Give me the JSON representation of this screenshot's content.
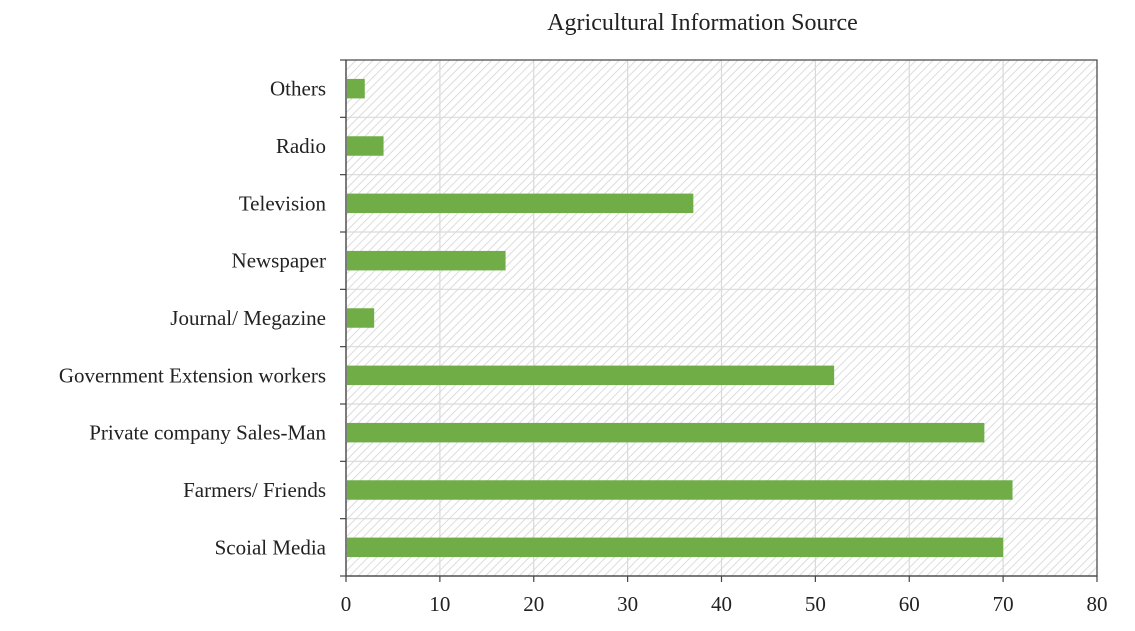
{
  "chart_data": {
    "type": "bar",
    "orientation": "horizontal",
    "title": "Agricultural Information Source",
    "xlabel": "",
    "ylabel": "",
    "categories": [
      "Others",
      "Radio",
      "Television",
      "Newspaper",
      "Journal/ Megazine",
      "Government Extension workers",
      "Private company Sales-Man",
      "Farmers/ Friends",
      "Scoial Media"
    ],
    "values": [
      2,
      4,
      37,
      17,
      3,
      52,
      68,
      71,
      70
    ],
    "xlim": [
      0,
      80
    ],
    "xticks": [
      "0",
      "10",
      "20",
      "30",
      "40",
      "50",
      "60",
      "70",
      "80"
    ],
    "grid": true,
    "bar_color": "#70ad47",
    "legend": "none"
  }
}
